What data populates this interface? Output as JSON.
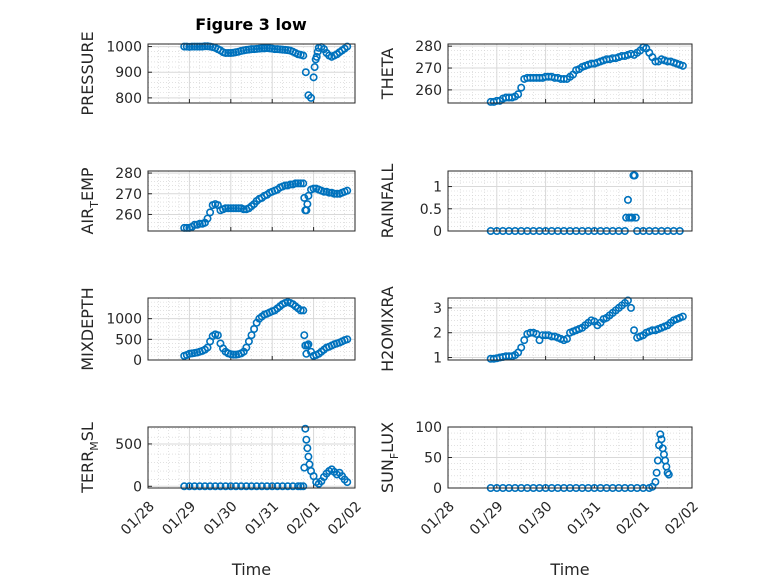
{
  "figure": {
    "title": "Figure 3 low",
    "marker_color": "#0072BD"
  },
  "chart_data": [
    {
      "type": "scatter",
      "ylabel": "PRESSURE",
      "xlabel": "",
      "title": "Figure 3 low",
      "xlim": [
        0,
        4
      ],
      "ylim": [
        780,
        1010
      ],
      "yticks": [
        800,
        900,
        1000
      ],
      "grid": true,
      "x": [
        0.7,
        0.75,
        0.8,
        0.85,
        0.9,
        0.95,
        1.0,
        1.05,
        1.1,
        1.15,
        1.2,
        1.25,
        1.3,
        1.35,
        1.4,
        1.45,
        1.5,
        1.55,
        1.6,
        1.65,
        1.7,
        1.75,
        1.8,
        1.85,
        1.9,
        1.95,
        2.0,
        2.05,
        2.1,
        2.15,
        2.2,
        2.25,
        2.3,
        2.35,
        2.4,
        2.45,
        2.5,
        2.55,
        2.6,
        2.65,
        2.7,
        2.75,
        2.8,
        2.85,
        2.9,
        2.95,
        3.0,
        3.05,
        3.1,
        3.15,
        3.2,
        3.22,
        3.24,
        3.26,
        3.28,
        3.3,
        3.35,
        3.4,
        3.45,
        3.5,
        3.55,
        3.6,
        3.65,
        3.7,
        3.75,
        3.8,
        3.85
      ],
      "y": [
        1000,
        1000,
        999,
        1000,
        1000,
        1000,
        1000,
        1000,
        1001,
        1001,
        1000,
        998,
        995,
        990,
        985,
        978,
        975,
        975,
        975,
        976,
        978,
        980,
        983,
        985,
        987,
        988,
        990,
        990,
        991,
        992,
        993,
        993,
        994,
        993,
        992,
        990,
        990,
        989,
        988,
        987,
        986,
        984,
        980,
        975,
        970,
        968,
        965,
        900,
        810,
        800,
        880,
        920,
        950,
        960,
        980,
        995,
        998,
        990,
        975,
        965,
        960,
        965,
        970,
        978,
        985,
        992,
        1000
      ]
    },
    {
      "type": "scatter",
      "ylabel": "THETA",
      "xlabel": "",
      "xlim": [
        0,
        4
      ],
      "ylim": [
        254,
        281
      ],
      "yticks": [
        260,
        270,
        280
      ],
      "grid": true,
      "x": [
        0.7,
        0.75,
        0.8,
        0.85,
        0.9,
        0.95,
        1.0,
        1.05,
        1.1,
        1.15,
        1.2,
        1.25,
        1.3,
        1.35,
        1.4,
        1.45,
        1.5,
        1.55,
        1.6,
        1.65,
        1.7,
        1.75,
        1.8,
        1.85,
        1.9,
        1.95,
        2.0,
        2.05,
        2.1,
        2.15,
        2.2,
        2.25,
        2.3,
        2.35,
        2.4,
        2.45,
        2.5,
        2.55,
        2.6,
        2.65,
        2.7,
        2.75,
        2.8,
        2.85,
        2.9,
        2.95,
        3.0,
        3.05,
        3.1,
        3.15,
        3.2,
        3.25,
        3.3,
        3.35,
        3.4,
        3.45,
        3.5,
        3.55,
        3.6,
        3.65,
        3.7,
        3.75,
        3.8,
        3.85
      ],
      "y": [
        254.5,
        254.5,
        255,
        255,
        256,
        256.5,
        256.5,
        256.5,
        257,
        258,
        261,
        265,
        265.5,
        265.5,
        265.5,
        265.5,
        265.5,
        265.5,
        266,
        266,
        266,
        265.5,
        265.5,
        265,
        265,
        265,
        266,
        267,
        269,
        269.5,
        270.5,
        271,
        271.5,
        272,
        272,
        272.5,
        273,
        273.5,
        274,
        274,
        274.5,
        274.5,
        275,
        275.5,
        275.5,
        276,
        276.5,
        276,
        277,
        278,
        279.5,
        279,
        277,
        275,
        273,
        273,
        274,
        273.5,
        273,
        273,
        272.5,
        272,
        271.5,
        271
      ]
    },
    {
      "type": "scatter",
      "ylabel": "AIR_TEMP",
      "xlabel": "",
      "xlim": [
        0,
        4
      ],
      "ylim": [
        252,
        281
      ],
      "yticks": [
        260,
        270,
        280
      ],
      "grid": true,
      "x": [
        0.7,
        0.75,
        0.8,
        0.85,
        0.9,
        0.95,
        1.0,
        1.05,
        1.1,
        1.15,
        1.2,
        1.25,
        1.3,
        1.35,
        1.4,
        1.45,
        1.5,
        1.55,
        1.6,
        1.65,
        1.7,
        1.75,
        1.8,
        1.85,
        1.9,
        1.95,
        2.0,
        2.05,
        2.1,
        2.15,
        2.2,
        2.25,
        2.3,
        2.35,
        2.4,
        2.45,
        2.5,
        2.55,
        2.6,
        2.65,
        2.7,
        2.75,
        2.8,
        2.85,
        2.9,
        2.95,
        3.0,
        3.02,
        3.04,
        3.06,
        3.08,
        3.1,
        3.15,
        3.2,
        3.25,
        3.3,
        3.35,
        3.4,
        3.45,
        3.5,
        3.55,
        3.6,
        3.65,
        3.7,
        3.75,
        3.8,
        3.85
      ],
      "y": [
        253.5,
        253.5,
        253.5,
        254,
        255,
        255,
        255.5,
        255.5,
        256,
        258,
        261,
        264.5,
        265,
        264.5,
        262,
        262.5,
        263,
        263,
        263,
        263,
        263,
        263,
        263,
        262.5,
        262.5,
        263,
        264,
        265,
        266.5,
        267.5,
        268,
        269,
        269.5,
        270.5,
        271,
        271.5,
        272,
        273,
        273.5,
        274,
        274,
        274.5,
        274.5,
        275,
        275,
        275,
        275,
        268,
        262,
        262,
        265,
        269,
        272,
        272.5,
        272.5,
        272,
        271.5,
        271,
        271,
        270.5,
        270.5,
        270,
        270,
        270,
        270.5,
        271,
        271.5
      ]
    },
    {
      "type": "scatter",
      "ylabel": "RAINFALL",
      "xlabel": "",
      "xlim": [
        0,
        4
      ],
      "ylim": [
        0,
        1.35
      ],
      "yticks": [
        0,
        0.5,
        1
      ],
      "grid": true,
      "x": [
        0.7,
        0.8,
        0.9,
        1.0,
        1.1,
        1.2,
        1.3,
        1.4,
        1.5,
        1.6,
        1.7,
        1.8,
        1.9,
        2.0,
        2.1,
        2.2,
        2.3,
        2.4,
        2.5,
        2.6,
        2.7,
        2.8,
        2.9,
        2.92,
        2.95,
        2.97,
        3.0,
        3.02,
        3.04,
        3.06,
        3.08,
        3.1,
        3.2,
        3.3,
        3.4,
        3.5,
        3.6,
        3.7,
        3.8
      ],
      "y": [
        0,
        0,
        0,
        0,
        0,
        0,
        0,
        0,
        0,
        0,
        0,
        0,
        0,
        0,
        0,
        0,
        0,
        0,
        0,
        0,
        0,
        0,
        0,
        0.3,
        0.7,
        0.3,
        0.3,
        0.3,
        1.25,
        1.25,
        0.3,
        0,
        0,
        0,
        0,
        0,
        0,
        0,
        0
      ]
    },
    {
      "type": "scatter",
      "ylabel": "MIXDEPTH",
      "xlabel": "",
      "xlim": [
        0,
        4
      ],
      "ylim": [
        0,
        1500
      ],
      "yticks": [
        0,
        500,
        1000
      ],
      "grid": true,
      "x": [
        0.7,
        0.75,
        0.8,
        0.85,
        0.9,
        0.95,
        1.0,
        1.05,
        1.1,
        1.15,
        1.2,
        1.25,
        1.3,
        1.35,
        1.4,
        1.45,
        1.5,
        1.55,
        1.6,
        1.65,
        1.7,
        1.75,
        1.8,
        1.85,
        1.9,
        1.95,
        2.0,
        2.05,
        2.1,
        2.15,
        2.2,
        2.25,
        2.3,
        2.35,
        2.4,
        2.45,
        2.5,
        2.55,
        2.6,
        2.65,
        2.7,
        2.75,
        2.8,
        2.85,
        2.9,
        2.95,
        3.0,
        3.02,
        3.04,
        3.06,
        3.08,
        3.1,
        3.15,
        3.2,
        3.25,
        3.3,
        3.35,
        3.4,
        3.45,
        3.5,
        3.55,
        3.6,
        3.65,
        3.7,
        3.75,
        3.8,
        3.85
      ],
      "y": [
        100,
        120,
        150,
        160,
        170,
        180,
        200,
        220,
        250,
        300,
        450,
        580,
        620,
        600,
        400,
        280,
        200,
        160,
        140,
        130,
        130,
        140,
        160,
        200,
        300,
        450,
        600,
        750,
        900,
        1000,
        1050,
        1100,
        1120,
        1150,
        1180,
        1200,
        1250,
        1300,
        1350,
        1380,
        1400,
        1380,
        1350,
        1300,
        1250,
        1200,
        1200,
        600,
        350,
        150,
        350,
        380,
        200,
        100,
        120,
        150,
        200,
        250,
        300,
        320,
        350,
        380,
        400,
        420,
        450,
        480,
        500
      ]
    },
    {
      "type": "scatter",
      "ylabel": "H2OMIXRA",
      "xlabel": "",
      "xlim": [
        0,
        4
      ],
      "ylim": [
        0.9,
        3.4
      ],
      "yticks": [
        1,
        2,
        3
      ],
      "grid": true,
      "x": [
        0.7,
        0.75,
        0.8,
        0.85,
        0.9,
        0.95,
        1.0,
        1.05,
        1.1,
        1.15,
        1.2,
        1.25,
        1.3,
        1.35,
        1.4,
        1.45,
        1.5,
        1.55,
        1.6,
        1.65,
        1.7,
        1.75,
        1.8,
        1.85,
        1.9,
        1.95,
        2.0,
        2.05,
        2.1,
        2.15,
        2.2,
        2.25,
        2.3,
        2.35,
        2.4,
        2.45,
        2.5,
        2.55,
        2.6,
        2.65,
        2.7,
        2.75,
        2.8,
        2.85,
        2.9,
        2.95,
        3.0,
        3.05,
        3.1,
        3.15,
        3.2,
        3.25,
        3.3,
        3.35,
        3.4,
        3.45,
        3.5,
        3.55,
        3.6,
        3.65,
        3.7,
        3.75,
        3.8,
        3.85
      ],
      "y": [
        0.95,
        0.95,
        0.97,
        1.0,
        1.02,
        1.05,
        1.05,
        1.05,
        1.1,
        1.2,
        1.4,
        1.7,
        1.95,
        2.0,
        2.0,
        1.95,
        1.7,
        1.9,
        1.9,
        1.9,
        1.85,
        1.85,
        1.8,
        1.75,
        1.7,
        1.75,
        2.0,
        2.05,
        2.1,
        2.15,
        2.2,
        2.3,
        2.4,
        2.5,
        2.45,
        2.3,
        2.4,
        2.55,
        2.6,
        2.7,
        2.8,
        2.9,
        3.0,
        3.1,
        3.2,
        3.3,
        3.0,
        2.1,
        1.8,
        1.85,
        1.9,
        2.0,
        2.05,
        2.1,
        2.1,
        2.15,
        2.2,
        2.25,
        2.3,
        2.4,
        2.5,
        2.55,
        2.6,
        2.65
      ]
    },
    {
      "type": "scatter",
      "ylabel": "TERR_MSL",
      "xlabel": "Time",
      "xlim": [
        0,
        4
      ],
      "ylim": [
        -20,
        700
      ],
      "yticks": [
        0,
        500
      ],
      "grid": true,
      "xticks": [
        0,
        0.8,
        1.6,
        2.4,
        3.2,
        4.0
      ],
      "xticklabels": [
        "01/28",
        "01/29",
        "01/30",
        "01/31",
        "02/01",
        "02/02"
      ],
      "x": [
        0.7,
        0.8,
        0.9,
        1.0,
        1.1,
        1.2,
        1.3,
        1.4,
        1.5,
        1.6,
        1.7,
        1.8,
        1.9,
        2.0,
        2.1,
        2.2,
        2.3,
        2.4,
        2.5,
        2.6,
        2.7,
        2.8,
        2.9,
        2.95,
        3.0,
        3.02,
        3.04,
        3.06,
        3.08,
        3.1,
        3.12,
        3.15,
        3.2,
        3.25,
        3.3,
        3.35,
        3.4,
        3.45,
        3.5,
        3.55,
        3.6,
        3.65,
        3.7,
        3.75,
        3.8,
        3.85
      ],
      "y": [
        0,
        0,
        0,
        0,
        0,
        0,
        0,
        0,
        0,
        0,
        0,
        0,
        0,
        0,
        0,
        0,
        0,
        0,
        0,
        0,
        0,
        0,
        0,
        0,
        0,
        220,
        680,
        550,
        450,
        350,
        260,
        180,
        120,
        50,
        30,
        60,
        110,
        150,
        180,
        200,
        170,
        140,
        160,
        120,
        80,
        50
      ]
    },
    {
      "type": "scatter",
      "ylabel": "SUN_FLUX",
      "xlabel": "Time",
      "xlim": [
        0,
        4
      ],
      "ylim": [
        0,
        100
      ],
      "yticks": [
        0,
        50,
        100
      ],
      "grid": true,
      "xticks": [
        0,
        0.8,
        1.6,
        2.4,
        3.2,
        4.0
      ],
      "xticklabels": [
        "01/28",
        "01/29",
        "01/30",
        "01/31",
        "02/01",
        "02/02"
      ],
      "x": [
        0.7,
        0.8,
        0.9,
        1.0,
        1.1,
        1.2,
        1.3,
        1.4,
        1.5,
        1.6,
        1.7,
        1.8,
        1.9,
        2.0,
        2.1,
        2.2,
        2.3,
        2.4,
        2.5,
        2.6,
        2.7,
        2.8,
        2.9,
        3.0,
        3.1,
        3.2,
        3.3,
        3.35,
        3.4,
        3.42,
        3.44,
        3.46,
        3.48,
        3.5,
        3.52,
        3.54,
        3.56,
        3.58,
        3.6,
        3.62
      ],
      "y": [
        0,
        0,
        0,
        0,
        0,
        0,
        0,
        0,
        0,
        0,
        0,
        0,
        0,
        0,
        0,
        0,
        0,
        0,
        0,
        0,
        0,
        0,
        0,
        0,
        0,
        0,
        0,
        2,
        10,
        25,
        45,
        70,
        88,
        80,
        65,
        55,
        45,
        35,
        25,
        22
      ]
    }
  ]
}
